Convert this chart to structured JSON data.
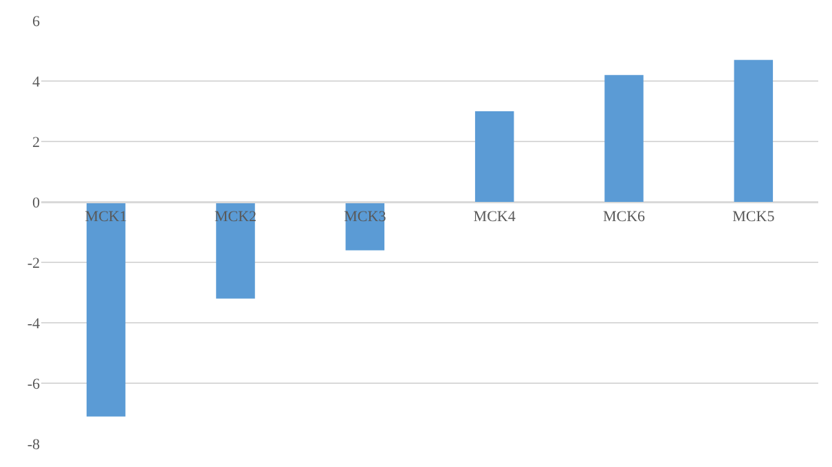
{
  "chart_data": {
    "type": "bar",
    "categories": [
      "MCK1",
      "MCK2",
      "MCK3",
      "MCK4",
      "MCK6",
      "MCK5"
    ],
    "values": [
      -7.1,
      -3.2,
      -1.6,
      3.0,
      4.2,
      4.7
    ],
    "color": "#5b9bd5",
    "ylim": [
      -8,
      6
    ],
    "yticks": [
      -8,
      -6,
      -4,
      -2,
      0,
      2,
      4,
      6
    ],
    "grid": "y"
  }
}
